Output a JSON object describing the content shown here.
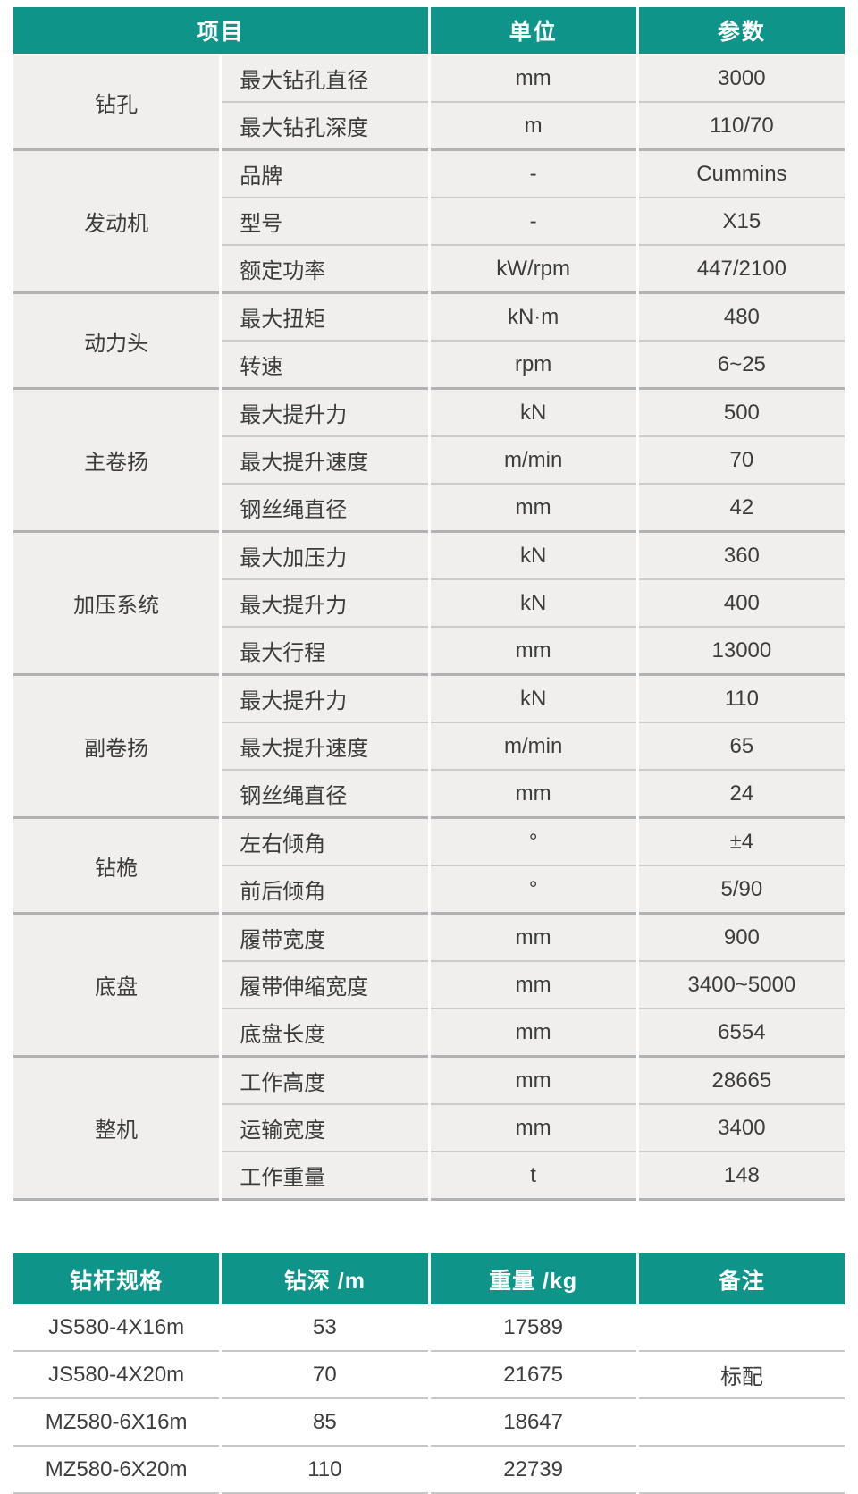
{
  "theme": {
    "header_bg": "#0e9488",
    "header_text": "#ffffff",
    "row_bg": "#f0efed",
    "body_text": "#3c3c3c",
    "group_divider": "#b2b2b2",
    "inner_divider": "#cbcbcb"
  },
  "spec_table": {
    "headers": {
      "item": "项目",
      "unit": "单位",
      "param": "参数"
    },
    "groups": [
      {
        "name": "钻孔",
        "rows": [
          {
            "label": "最大钻孔直径",
            "unit": "mm",
            "value": "3000"
          },
          {
            "label": "最大钻孔深度",
            "unit": "m",
            "value": "110/70"
          }
        ]
      },
      {
        "name": "发动机",
        "rows": [
          {
            "label": "品牌",
            "unit": "-",
            "value": "Cummins"
          },
          {
            "label": "型号",
            "unit": "-",
            "value": "X15"
          },
          {
            "label": "额定功率",
            "unit": "kW/rpm",
            "value": "447/2100"
          }
        ]
      },
      {
        "name": "动力头",
        "rows": [
          {
            "label": "最大扭矩",
            "unit": "kN·m",
            "value": "480"
          },
          {
            "label": "转速",
            "unit": "rpm",
            "value": "6~25"
          }
        ]
      },
      {
        "name": "主卷扬",
        "rows": [
          {
            "label": "最大提升力",
            "unit": "kN",
            "value": "500"
          },
          {
            "label": "最大提升速度",
            "unit": "m/min",
            "value": "70"
          },
          {
            "label": "钢丝绳直径",
            "unit": "mm",
            "value": "42"
          }
        ]
      },
      {
        "name": "加压系统",
        "rows": [
          {
            "label": "最大加压力",
            "unit": "kN",
            "value": "360"
          },
          {
            "label": "最大提升力",
            "unit": "kN",
            "value": "400"
          },
          {
            "label": "最大行程",
            "unit": "mm",
            "value": "13000"
          }
        ]
      },
      {
        "name": "副卷扬",
        "rows": [
          {
            "label": "最大提升力",
            "unit": "kN",
            "value": "110"
          },
          {
            "label": "最大提升速度",
            "unit": "m/min",
            "value": "65"
          },
          {
            "label": "钢丝绳直径",
            "unit": "mm",
            "value": "24"
          }
        ]
      },
      {
        "name": "钻桅",
        "rows": [
          {
            "label": "左右倾角",
            "unit": "°",
            "value": "±4"
          },
          {
            "label": "前后倾角",
            "unit": "°",
            "value": "5/90"
          }
        ]
      },
      {
        "name": "底盘",
        "rows": [
          {
            "label": "履带宽度",
            "unit": "mm",
            "value": "900"
          },
          {
            "label": "履带伸缩宽度",
            "unit": "mm",
            "value": "3400~5000"
          },
          {
            "label": "底盘长度",
            "unit": "mm",
            "value": "6554"
          }
        ]
      },
      {
        "name": "整机",
        "rows": [
          {
            "label": "工作高度",
            "unit": "mm",
            "value": "28665"
          },
          {
            "label": "运输宽度",
            "unit": "mm",
            "value": "3400"
          },
          {
            "label": "工作重量",
            "unit": "t",
            "value": "148"
          }
        ]
      }
    ]
  },
  "pipe_table": {
    "headers": {
      "spec": "钻杆规格",
      "depth": "钻深 /m",
      "weight": "重量 /kg",
      "remark": "备注"
    },
    "rows": [
      {
        "spec": "JS580-4X16m",
        "depth": "53",
        "weight": "17589",
        "remark": ""
      },
      {
        "spec": "JS580-4X20m",
        "depth": "70",
        "weight": "21675",
        "remark": "标配"
      },
      {
        "spec": "MZ580-6X16m",
        "depth": "85",
        "weight": "18647",
        "remark": ""
      },
      {
        "spec": "MZ580-6X20m",
        "depth": "110",
        "weight": "22739",
        "remark": ""
      }
    ]
  }
}
